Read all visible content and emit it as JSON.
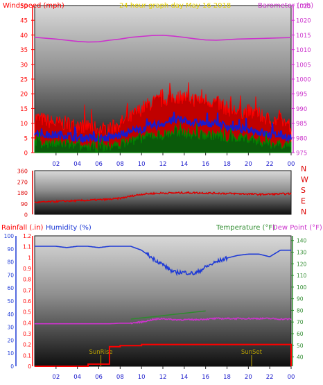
{
  "colors": {
    "wind": "#ff0000",
    "wind_fill": "#c00000",
    "wind_avg": "#1a1acc",
    "wind_low": "#008800",
    "baro": "#cc33cc",
    "header_title": "#e6cf00",
    "direction": "#dd0000",
    "rain": "#ff0000",
    "humidity": "#1f3bd6",
    "temperature": "#2e8b2e",
    "dewpoint": "#cc33cc",
    "sun": "#b8a000",
    "frame": "#111111"
  },
  "chart_data": [
    {
      "id": "wind_baro",
      "type": "line",
      "title": "24 hour graph day   May 16 2018",
      "left_axis_label": "Windspeed (mph)",
      "right_axis_label": "Barometer (mb)",
      "x_tick_labels": [
        "02",
        "04",
        "06",
        "08",
        "10",
        "12",
        "14",
        "16",
        "18",
        "20",
        "22",
        "00"
      ],
      "y_left_ticks": [
        "0",
        "5",
        "10",
        "15",
        "20",
        "25",
        "30",
        "35",
        "40",
        "45",
        "50"
      ],
      "y_left_lim": [
        0,
        50
      ],
      "y_right_ticks": [
        "975",
        "980",
        "985",
        "990",
        "995",
        "1000",
        "1005",
        "1010",
        "1015",
        "1020",
        "1025"
      ],
      "y_right_lim": [
        975,
        1025
      ],
      "x_hours": [
        0,
        1,
        2,
        3,
        4,
        5,
        6,
        7,
        8,
        9,
        10,
        11,
        12,
        13,
        14,
        15,
        16,
        17,
        18,
        19,
        20,
        21,
        22,
        23,
        24
      ],
      "series": [
        {
          "key": "gust",
          "values": [
            12,
            11,
            10,
            10,
            9,
            9,
            8,
            8,
            10,
            12,
            15,
            17,
            18,
            19,
            19,
            18,
            18,
            17,
            15,
            14,
            14,
            13,
            11,
            11,
            9
          ]
        },
        {
          "key": "speed",
          "values": [
            7,
            6,
            6,
            6,
            5,
            5,
            5,
            5,
            6,
            7,
            8,
            9,
            10,
            11,
            11,
            10,
            10,
            10,
            9,
            8,
            8,
            7,
            6,
            6,
            5
          ]
        },
        {
          "key": "low",
          "values": [
            4,
            3,
            3,
            3,
            2,
            2,
            2,
            2,
            3,
            4,
            5,
            6,
            6,
            7,
            7,
            6,
            6,
            6,
            5,
            5,
            5,
            4,
            3,
            3,
            3
          ]
        },
        {
          "key": "barometer",
          "values": [
            1014.2,
            1013.9,
            1013.6,
            1013.2,
            1012.8,
            1012.6,
            1012.7,
            1013.2,
            1013.6,
            1014.2,
            1014.5,
            1014.8,
            1014.9,
            1014.6,
            1014.2,
            1013.7,
            1013.3,
            1013.2,
            1013.4,
            1013.6,
            1013.7,
            1013.8,
            1013.9,
            1014.0,
            1014.1
          ]
        }
      ]
    },
    {
      "id": "direction",
      "type": "line",
      "y_ticks": [
        "0",
        "90",
        "180",
        "270",
        "360"
      ],
      "y_lim": [
        0,
        360
      ],
      "compass_labels": [
        "N",
        "W",
        "S",
        "E",
        "N"
      ],
      "x_hours": [
        0,
        1,
        2,
        3,
        4,
        5,
        6,
        7,
        8,
        9,
        10,
        11,
        12,
        13,
        14,
        15,
        16,
        17,
        18,
        19,
        20,
        21,
        22,
        23,
        24
      ],
      "values": [
        98,
        102,
        106,
        110,
        112,
        116,
        120,
        124,
        132,
        150,
        166,
        172,
        175,
        176,
        178,
        178,
        176,
        174,
        172,
        170,
        168,
        164,
        166,
        168,
        170
      ]
    },
    {
      "id": "rain_humidity_temp",
      "type": "line",
      "rain_label": "Rainfall (.in)",
      "humidity_label": "Humidity (%)",
      "temperature_label": "Temperature (°F)",
      "dewpoint_label": "Dew Point (°F)",
      "x_tick_labels": [
        "02",
        "04",
        "06",
        "08",
        "10",
        "12",
        "14",
        "16",
        "18",
        "20",
        "22",
        "00"
      ],
      "humidity_ticks": [
        "0",
        "10",
        "20",
        "30",
        "40",
        "50",
        "60",
        "70",
        "80",
        "90",
        "100"
      ],
      "rain_ticks": [
        "0",
        "0.1",
        "0.2",
        "0.3",
        "0.4",
        "0.5",
        "0.6",
        "0.7",
        "0.8",
        "0.9",
        "1",
        "1.1",
        "1.2"
      ],
      "temp_ticks": [
        "40",
        "50",
        "60",
        "70",
        "80",
        "90",
        "100",
        "110",
        "120",
        "130",
        "140"
      ],
      "humidity_lim": [
        0,
        100
      ],
      "rain_lim": [
        0,
        1.2
      ],
      "temp_lim": [
        32,
        144
      ],
      "x_hours": [
        0,
        1,
        2,
        3,
        4,
        5,
        6,
        7,
        8,
        9,
        10,
        11,
        12,
        13,
        14,
        15,
        16,
        17,
        18,
        19,
        20,
        21,
        22,
        23,
        24
      ],
      "humidity": [
        92,
        92,
        92,
        91,
        92,
        92,
        91,
        92,
        92,
        92,
        89,
        83,
        78,
        72,
        72,
        71,
        76,
        80,
        83,
        85,
        86,
        86,
        84,
        89,
        89
      ],
      "temperature": [
        null,
        null,
        null,
        null,
        null,
        null,
        null,
        null,
        null,
        72.5,
        73.5,
        74.5,
        75.5,
        76.5,
        77.5,
        78.5,
        79.5,
        null,
        null,
        null,
        null,
        null,
        null,
        null,
        null
      ],
      "dewpoint": [
        68.5,
        68.5,
        68.5,
        68.5,
        68.5,
        68.5,
        68.5,
        68.5,
        69,
        69,
        70,
        72,
        73,
        72,
        72,
        72,
        72.5,
        73,
        73,
        73,
        73,
        73,
        73,
        72.5,
        72.5
      ],
      "rainfall": [
        0,
        0,
        0,
        0,
        0,
        0.02,
        0.02,
        0.18,
        0.19,
        0.19,
        0.2,
        0.2,
        0.2,
        0.2,
        0.2,
        0.2,
        0.2,
        0.2,
        0.2,
        0.2,
        0.2,
        0.2,
        0.2,
        0.2,
        0.19
      ],
      "sunrise_hour": 6.2,
      "sunset_hour": 20.3,
      "sunrise_label": "SunRise",
      "sunset_label": "SunSet"
    }
  ]
}
